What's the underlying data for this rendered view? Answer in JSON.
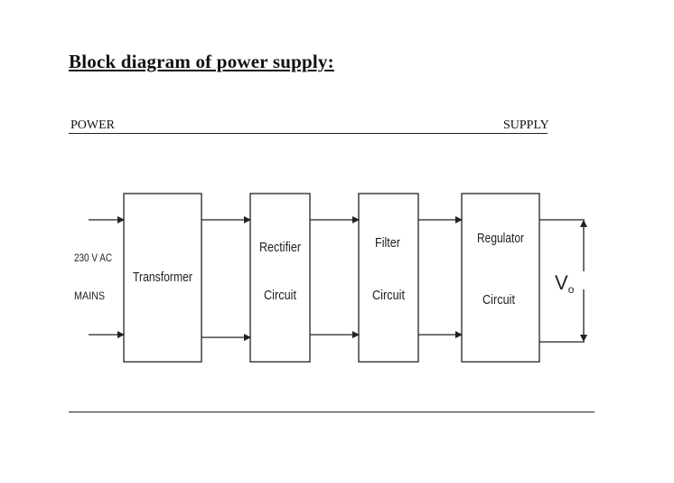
{
  "title": "Block diagram of power supply:",
  "header_left": "POWER",
  "header_right": "SUPPLY",
  "input": {
    "line1": "230 V AC",
    "line2": "MAINS"
  },
  "blocks": [
    {
      "line1": "Transformer",
      "line2": ""
    },
    {
      "line1": "Rectifier",
      "line2": "Circuit"
    },
    {
      "line1": "Filter",
      "line2": "Circuit"
    },
    {
      "line1": "Regulator",
      "line2": "Circuit"
    }
  ],
  "output": {
    "symbol": "V",
    "subscript": "o"
  },
  "colors": {
    "line": "#222222",
    "background": "#ffffff"
  }
}
